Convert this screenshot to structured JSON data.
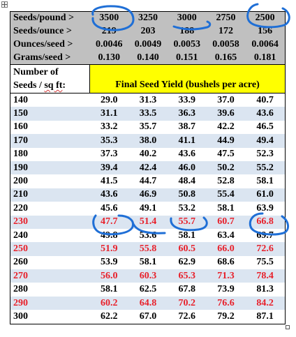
{
  "table": {
    "header_rows": [
      {
        "label": "Seeds/pound >",
        "values": [
          "3500",
          "3250",
          "3000",
          "2750",
          "2500"
        ]
      },
      {
        "label": "Seeds/ounce >",
        "values": [
          "219",
          "203",
          "188",
          "172",
          "156"
        ]
      },
      {
        "label": "Ounces/seed >",
        "values": [
          "0.0046",
          "0.0049",
          "0.0053",
          "0.0058",
          "0.0064"
        ]
      },
      {
        "label": "Grams/seed >",
        "values": [
          "0.130",
          "0.140",
          "0.151",
          "0.165",
          "0.181"
        ]
      }
    ],
    "column_header": {
      "line1": "Number of",
      "line2_part1": "Seeds /",
      "line2_part2": "sq ft",
      "line2_part3": ":",
      "yield_label": "Final Seed Yield (bushels per acre)"
    },
    "rows": [
      {
        "seeds": "140",
        "values": [
          "29.0",
          "31.3",
          "33.9",
          "37.0",
          "40.7"
        ]
      },
      {
        "seeds": "150",
        "values": [
          "31.1",
          "33.5",
          "36.3",
          "39.6",
          "43.6"
        ]
      },
      {
        "seeds": "160",
        "values": [
          "33.2",
          "35.7",
          "38.7",
          "42.2",
          "46.5"
        ]
      },
      {
        "seeds": "170",
        "values": [
          "35.3",
          "38.0",
          "41.1",
          "44.9",
          "49.4"
        ]
      },
      {
        "seeds": "180",
        "values": [
          "37.3",
          "40.2",
          "43.6",
          "47.5",
          "52.3"
        ]
      },
      {
        "seeds": "190",
        "values": [
          "39.4",
          "42.4",
          "46.0",
          "50.2",
          "55.2"
        ]
      },
      {
        "seeds": "200",
        "values": [
          "41.5",
          "44.7",
          "48.4",
          "52.8",
          "58.1"
        ]
      },
      {
        "seeds": "210",
        "values": [
          "43.6",
          "46.9",
          "50.8",
          "55.4",
          "61.0"
        ]
      },
      {
        "seeds": "220",
        "values": [
          "45.6",
          "49.1",
          "53.2",
          "58.1",
          "63.9"
        ]
      },
      {
        "seeds": "230",
        "values": [
          "47.7",
          "51.4",
          "55.7",
          "60.7",
          "66.8"
        ]
      },
      {
        "seeds": "240",
        "values": [
          "49.8",
          "53.6",
          "58.1",
          "63.4",
          "69.7"
        ]
      },
      {
        "seeds": "250",
        "values": [
          "51.9",
          "55.8",
          "60.5",
          "66.0",
          "72.6"
        ]
      },
      {
        "seeds": "260",
        "values": [
          "53.9",
          "58.1",
          "62.9",
          "68.6",
          "75.5"
        ]
      },
      {
        "seeds": "270",
        "values": [
          "56.0",
          "60.3",
          "65.3",
          "71.3",
          "78.4"
        ]
      },
      {
        "seeds": "280",
        "values": [
          "58.1",
          "62.5",
          "67.8",
          "73.9",
          "81.3"
        ]
      },
      {
        "seeds": "290",
        "values": [
          "60.2",
          "64.8",
          "70.2",
          "76.6",
          "84.2"
        ]
      },
      {
        "seeds": "300",
        "values": [
          "62.2",
          "67.0",
          "72.6",
          "79.2",
          "87.1"
        ]
      }
    ],
    "red_rows": [
      "230",
      "250",
      "270",
      "290"
    ],
    "band_rows": [
      "150",
      "170",
      "190",
      "210",
      "230",
      "250",
      "270",
      "290"
    ]
  },
  "annotations": {
    "circled_header_values": [
      "3500",
      "3000",
      "2500"
    ],
    "circled_row": "230",
    "circled_row_values": [
      "47.7",
      "55.7",
      "66.8"
    ],
    "ink_color": "#1f6fd6"
  },
  "colors": {
    "header_gray": "#c0c0c0",
    "yield_header_yellow": "#ffff00",
    "band_blue": "#dbe5f1",
    "highlight_red": "#e8202a",
    "grid_line": "#000000"
  },
  "icons": {
    "move_handle": "move-arrows-icon",
    "resize_handle": "resize-handle-icon"
  }
}
